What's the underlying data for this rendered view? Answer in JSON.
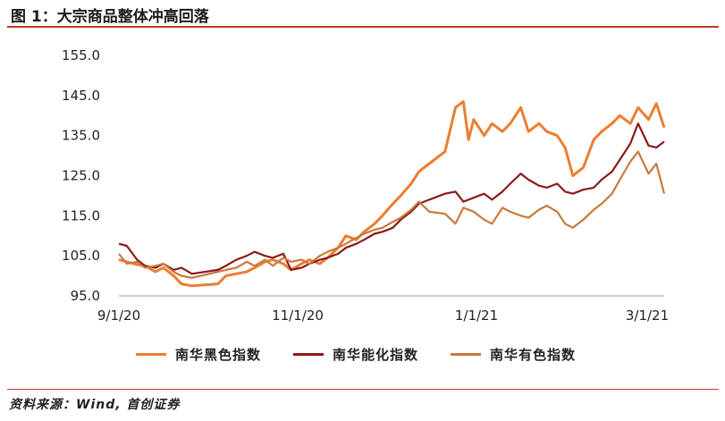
{
  "title": "图 1：大宗商品整体冲高回落",
  "source": "资料来源：Wind, 首创证券",
  "chart_data": {
    "type": "line",
    "ylim": [
      95.0,
      155.0
    ],
    "yticks": [
      "95.0",
      "105.0",
      "115.0",
      "125.0",
      "135.0",
      "145.0",
      "155.0"
    ],
    "xticks": [
      "9/1/20",
      "11/1/20",
      "1/1/21",
      "3/1/21"
    ],
    "grid": false,
    "legend_position": "bottom",
    "series": [
      {
        "name": "南华黑色指数",
        "color": "#ed7d31",
        "points": [
          [
            "2020-09-01",
            104.0
          ],
          [
            "2020-09-04",
            103.5
          ],
          [
            "2020-09-08",
            102.8
          ],
          [
            "2020-09-11",
            102.5
          ],
          [
            "2020-09-15",
            101.0
          ],
          [
            "2020-09-18",
            102.0
          ],
          [
            "2020-09-22",
            100.0
          ],
          [
            "2020-09-25",
            98.0
          ],
          [
            "2020-09-29",
            97.5
          ],
          [
            "2020-10-09",
            98.0
          ],
          [
            "2020-10-12",
            100.0
          ],
          [
            "2020-10-16",
            100.5
          ],
          [
            "2020-10-20",
            101.0
          ],
          [
            "2020-10-23",
            102.0
          ],
          [
            "2020-10-27",
            103.5
          ],
          [
            "2020-10-30",
            104.0
          ],
          [
            "2020-11-03",
            103.0
          ],
          [
            "2020-11-06",
            101.5
          ],
          [
            "2020-11-10",
            103.0
          ],
          [
            "2020-11-13",
            104.0
          ],
          [
            "2020-11-17",
            103.0
          ],
          [
            "2020-11-20",
            104.5
          ],
          [
            "2020-11-24",
            107.0
          ],
          [
            "2020-11-27",
            110.0
          ],
          [
            "2020-12-01",
            109.0
          ],
          [
            "2020-12-04",
            111.0
          ],
          [
            "2020-12-08",
            113.0
          ],
          [
            "2020-12-11",
            115.0
          ],
          [
            "2020-12-15",
            118.0
          ],
          [
            "2020-12-18",
            120.0
          ],
          [
            "2020-12-22",
            123.0
          ],
          [
            "2020-12-25",
            126.0
          ],
          [
            "2020-12-29",
            128.0
          ],
          [
            "2021-01-04",
            131.0
          ],
          [
            "2021-01-08",
            142.0
          ],
          [
            "2021-01-11",
            143.5
          ],
          [
            "2021-01-13",
            134.0
          ],
          [
            "2021-01-15",
            139.0
          ],
          [
            "2021-01-19",
            135.0
          ],
          [
            "2021-01-22",
            138.0
          ],
          [
            "2021-01-26",
            136.0
          ],
          [
            "2021-01-29",
            138.0
          ],
          [
            "2021-02-02",
            142.0
          ],
          [
            "2021-02-05",
            136.0
          ],
          [
            "2021-02-09",
            138.0
          ],
          [
            "2021-02-12",
            136.0
          ],
          [
            "2021-02-16",
            135.0
          ],
          [
            "2021-02-19",
            132.0
          ],
          [
            "2021-02-22",
            125.0
          ],
          [
            "2021-02-26",
            127.0
          ],
          [
            "2021-03-02",
            134.0
          ],
          [
            "2021-03-05",
            136.0
          ],
          [
            "2021-03-09",
            138.0
          ],
          [
            "2021-03-12",
            140.0
          ],
          [
            "2021-03-16",
            138.0
          ],
          [
            "2021-03-19",
            142.0
          ],
          [
            "2021-03-23",
            139.0
          ],
          [
            "2021-03-26",
            143.0
          ],
          [
            "2021-03-29",
            137.0
          ]
        ]
      },
      {
        "name": "南华能化指数",
        "color": "#8b1a1a",
        "points": [
          [
            "2020-09-01",
            108.0
          ],
          [
            "2020-09-04",
            107.5
          ],
          [
            "2020-09-08",
            104.0
          ],
          [
            "2020-09-11",
            102.5
          ],
          [
            "2020-09-15",
            102.0
          ],
          [
            "2020-09-18",
            103.0
          ],
          [
            "2020-09-22",
            101.5
          ],
          [
            "2020-09-25",
            102.0
          ],
          [
            "2020-09-29",
            100.5
          ],
          [
            "2020-10-09",
            101.5
          ],
          [
            "2020-10-12",
            102.5
          ],
          [
            "2020-10-16",
            104.0
          ],
          [
            "2020-10-20",
            105.0
          ],
          [
            "2020-10-23",
            106.0
          ],
          [
            "2020-10-27",
            105.0
          ],
          [
            "2020-10-30",
            104.5
          ],
          [
            "2020-11-03",
            105.5
          ],
          [
            "2020-11-06",
            101.5
          ],
          [
            "2020-11-10",
            102.0
          ],
          [
            "2020-11-13",
            103.0
          ],
          [
            "2020-11-17",
            104.0
          ],
          [
            "2020-11-20",
            104.5
          ],
          [
            "2020-11-24",
            105.5
          ],
          [
            "2020-11-27",
            107.0
          ],
          [
            "2020-12-01",
            108.0
          ],
          [
            "2020-12-04",
            109.0
          ],
          [
            "2020-12-08",
            110.5
          ],
          [
            "2020-12-11",
            111.0
          ],
          [
            "2020-12-15",
            112.0
          ],
          [
            "2020-12-18",
            114.0
          ],
          [
            "2020-12-22",
            116.0
          ],
          [
            "2020-12-25",
            118.0
          ],
          [
            "2020-12-29",
            119.0
          ],
          [
            "2021-01-04",
            120.5
          ],
          [
            "2021-01-08",
            121.0
          ],
          [
            "2021-01-11",
            118.5
          ],
          [
            "2021-01-15",
            119.5
          ],
          [
            "2021-01-19",
            120.5
          ],
          [
            "2021-01-22",
            119.0
          ],
          [
            "2021-01-26",
            121.0
          ],
          [
            "2021-01-29",
            123.0
          ],
          [
            "2021-02-02",
            125.5
          ],
          [
            "2021-02-05",
            124.0
          ],
          [
            "2021-02-09",
            122.5
          ],
          [
            "2021-02-12",
            122.0
          ],
          [
            "2021-02-16",
            123.0
          ],
          [
            "2021-02-19",
            121.0
          ],
          [
            "2021-02-22",
            120.5
          ],
          [
            "2021-02-26",
            121.5
          ],
          [
            "2021-03-02",
            122.0
          ],
          [
            "2021-03-05",
            124.0
          ],
          [
            "2021-03-09",
            126.0
          ],
          [
            "2021-03-12",
            129.0
          ],
          [
            "2021-03-16",
            133.0
          ],
          [
            "2021-03-19",
            138.0
          ],
          [
            "2021-03-23",
            132.5
          ],
          [
            "2021-03-26",
            132.0
          ],
          [
            "2021-03-29",
            133.5
          ]
        ]
      },
      {
        "name": "南华有色指数",
        "color": "#c97a3a",
        "points": [
          [
            "2020-09-01",
            105.5
          ],
          [
            "2020-09-04",
            103.0
          ],
          [
            "2020-09-08",
            103.5
          ],
          [
            "2020-09-11",
            102.0
          ],
          [
            "2020-09-15",
            102.5
          ],
          [
            "2020-09-18",
            103.0
          ],
          [
            "2020-09-22",
            101.0
          ],
          [
            "2020-09-25",
            100.0
          ],
          [
            "2020-09-29",
            99.5
          ],
          [
            "2020-10-09",
            101.0
          ],
          [
            "2020-10-12",
            101.5
          ],
          [
            "2020-10-16",
            102.0
          ],
          [
            "2020-10-20",
            103.5
          ],
          [
            "2020-10-23",
            102.5
          ],
          [
            "2020-10-27",
            104.0
          ],
          [
            "2020-10-30",
            102.5
          ],
          [
            "2020-11-03",
            104.5
          ],
          [
            "2020-11-06",
            103.5
          ],
          [
            "2020-11-10",
            104.0
          ],
          [
            "2020-11-13",
            103.0
          ],
          [
            "2020-11-17",
            105.0
          ],
          [
            "2020-11-20",
            106.0
          ],
          [
            "2020-11-24",
            107.0
          ],
          [
            "2020-11-27",
            108.0
          ],
          [
            "2020-12-01",
            109.5
          ],
          [
            "2020-12-04",
            110.5
          ],
          [
            "2020-12-08",
            111.5
          ],
          [
            "2020-12-11",
            112.0
          ],
          [
            "2020-12-15",
            113.5
          ],
          [
            "2020-12-18",
            114.5
          ],
          [
            "2020-12-22",
            116.5
          ],
          [
            "2020-12-25",
            118.5
          ],
          [
            "2020-12-29",
            116.0
          ],
          [
            "2021-01-04",
            115.5
          ],
          [
            "2021-01-08",
            113.0
          ],
          [
            "2021-01-11",
            117.0
          ],
          [
            "2021-01-15",
            116.0
          ],
          [
            "2021-01-19",
            114.0
          ],
          [
            "2021-01-22",
            113.0
          ],
          [
            "2021-01-26",
            117.0
          ],
          [
            "2021-01-29",
            116.0
          ],
          [
            "2021-02-02",
            115.0
          ],
          [
            "2021-02-05",
            114.5
          ],
          [
            "2021-02-09",
            116.5
          ],
          [
            "2021-02-12",
            117.5
          ],
          [
            "2021-02-16",
            116.0
          ],
          [
            "2021-02-19",
            113.0
          ],
          [
            "2021-02-22",
            112.0
          ],
          [
            "2021-02-26",
            114.0
          ],
          [
            "2021-03-02",
            116.5
          ],
          [
            "2021-03-05",
            118.0
          ],
          [
            "2021-03-09",
            120.5
          ],
          [
            "2021-03-12",
            124.0
          ],
          [
            "2021-03-16",
            128.5
          ],
          [
            "2021-03-19",
            131.0
          ],
          [
            "2021-03-23",
            125.5
          ],
          [
            "2021-03-26",
            128.0
          ],
          [
            "2021-03-29",
            120.5
          ]
        ]
      }
    ]
  }
}
